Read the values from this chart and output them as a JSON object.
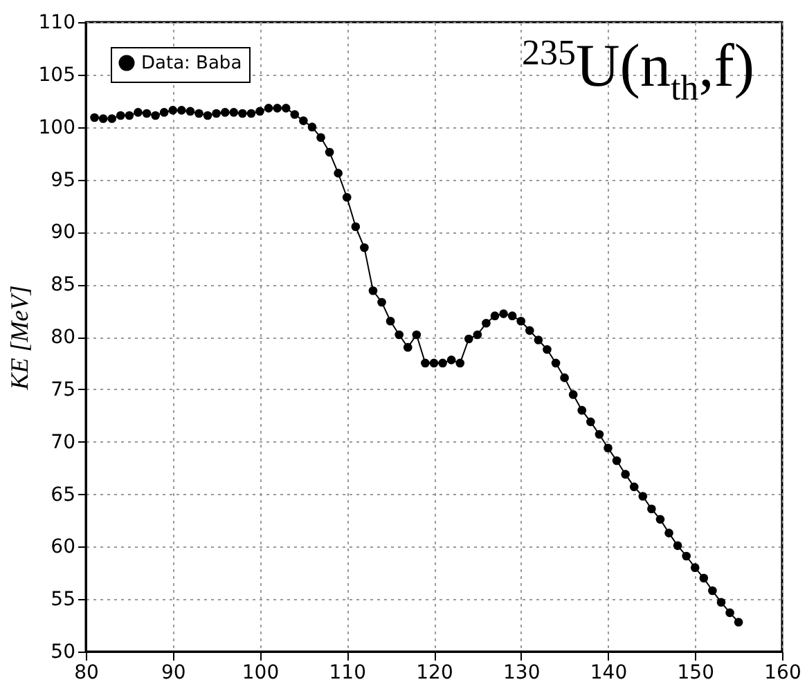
{
  "chart_data": {
    "type": "line",
    "ylabel": "KE [MeV]",
    "annotations": [
      "$^{235}$U(n$_{th}$,f)"
    ],
    "x": [
      81,
      82,
      83,
      84,
      85,
      86,
      87,
      88,
      89,
      90,
      91,
      92,
      93,
      94,
      95,
      96,
      97,
      98,
      99,
      100,
      101,
      102,
      103,
      104,
      105,
      106,
      107,
      108,
      109,
      110,
      111,
      112,
      113,
      114,
      115,
      116,
      117,
      118,
      119,
      120,
      121,
      122,
      123,
      124,
      125,
      126,
      127,
      128,
      129,
      130,
      131,
      132,
      133,
      134,
      135,
      136,
      137,
      138,
      139,
      140,
      141,
      142,
      143,
      144,
      145,
      146,
      147,
      148,
      149,
      150,
      151,
      152,
      153,
      154,
      155
    ],
    "series": [
      {
        "name": "Data: Baba",
        "color": "#000000",
        "values": [
          100.9,
          100.8,
          100.8,
          101.1,
          101.1,
          101.4,
          101.3,
          101.1,
          101.4,
          101.6,
          101.6,
          101.5,
          101.3,
          101.1,
          101.3,
          101.4,
          101.4,
          101.3,
          101.3,
          101.5,
          101.8,
          101.8,
          101.8,
          101.2,
          100.6,
          100.0,
          99.0,
          97.6,
          95.6,
          93.3,
          90.5,
          88.5,
          84.4,
          83.3,
          81.5,
          80.2,
          79.0,
          80.2,
          77.5,
          77.5,
          77.5,
          77.8,
          77.5,
          79.8,
          80.2,
          81.3,
          82.0,
          82.2,
          82.0,
          81.5,
          80.6,
          79.7,
          78.8,
          77.5,
          76.1,
          74.5,
          73.0,
          71.9,
          70.7,
          69.4,
          68.2,
          66.9,
          65.7,
          64.8,
          63.6,
          62.6,
          61.3,
          60.1,
          59.1,
          58.0,
          57.0,
          55.8,
          54.7,
          53.7,
          52.8
        ]
      }
    ],
    "xlim": [
      80,
      160
    ],
    "xticks": [
      80,
      90,
      100,
      110,
      120,
      130,
      140,
      150,
      160
    ],
    "ylim": [
      50,
      110
    ],
    "yticks": [
      50,
      55,
      60,
      65,
      70,
      75,
      80,
      85,
      90,
      95,
      100,
      105,
      110
    ],
    "grid": true,
    "legend": "top left",
    "marker": "circle",
    "line_style": "solid"
  }
}
